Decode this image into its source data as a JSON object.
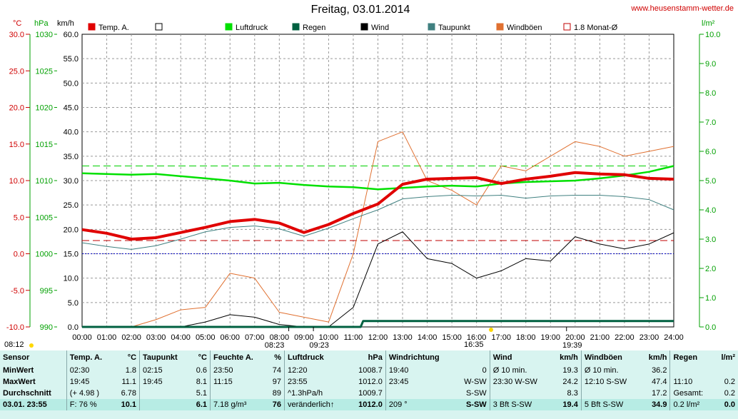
{
  "title": "Freitag, 03.01.2014",
  "site": "www.heusenstamm-wetter.de",
  "units": {
    "temp": "°C",
    "press": "hPa",
    "wind": "km/h",
    "rain": "l/m²"
  },
  "legend": [
    {
      "label": "Temp. A.",
      "color": "#e00000",
      "icon": "filled-square-icon"
    },
    {
      "label": "",
      "color": "#ffffff",
      "icon": "empty-square-icon"
    },
    {
      "label": "Luftdruck",
      "color": "#00e000",
      "icon": "filled-square-icon"
    },
    {
      "label": "Regen",
      "color": "#006040",
      "icon": "filled-square-icon"
    },
    {
      "label": "Wind",
      "color": "#000000",
      "icon": "filled-square-icon"
    },
    {
      "label": "Taupunkt",
      "color": "#408080",
      "icon": "filled-square-icon"
    },
    {
      "label": "Windböen",
      "color": "#e07030",
      "icon": "filled-square-icon"
    },
    {
      "label": "1.8 Monat-Ø",
      "color": "#c00000",
      "icon": "outline-square-icon"
    }
  ],
  "sun": {
    "sunrise": "08:12",
    "sunset": "16:35"
  },
  "chart_data": {
    "type": "line",
    "x_ticks": [
      "00:00",
      "01:00",
      "02:00",
      "03:00",
      "04:00",
      "05:00",
      "06:00",
      "07:00",
      "08:00",
      "09:00",
      "10:00",
      "11:00",
      "12:00",
      "13:00",
      "14:00",
      "15:00",
      "16:00",
      "17:00",
      "18:00",
      "19:00",
      "20:00",
      "21:00",
      "22:00",
      "23:00",
      "24:00"
    ],
    "x_markers": [
      "08:23",
      "09:23",
      "19:39"
    ],
    "axes": {
      "temp": {
        "ticks": [
          "30.0",
          "25.0",
          "20.0",
          "15.0",
          "10.0",
          "5.0",
          "0.0",
          "-5.0",
          "-10.0"
        ],
        "ylim": [
          -10,
          30
        ]
      },
      "press": {
        "ticks": [
          "1030",
          "1025",
          "1020",
          "1015",
          "1010",
          "1005",
          "1000",
          "995",
          "990"
        ],
        "ylim": [
          990,
          1030
        ]
      },
      "wind": {
        "ticks": [
          "60.0",
          "55.0",
          "50.0",
          "45.0",
          "40.0",
          "35.0",
          "30.0",
          "25.0",
          "20.0",
          "15.0",
          "10.0",
          "5.0",
          "0.0"
        ],
        "ylim": [
          0,
          60
        ]
      },
      "rain": {
        "ticks": [
          "10.0",
          "9.0",
          "8.0",
          "7.0",
          "6.0",
          "5.0",
          "4.0",
          "3.0",
          "2.0",
          "1.0",
          "0.0"
        ],
        "ylim": [
          0,
          10
        ]
      }
    },
    "reference_lines": {
      "pressure_avg": 1012.0,
      "temp_month_avg": 1.8,
      "freezing": 0.0
    },
    "series": [
      {
        "name": "Temp. A.",
        "color": "#e00000",
        "x": [
          0,
          1,
          2,
          3,
          4,
          5,
          6,
          7,
          8,
          9,
          10,
          11,
          12,
          13,
          14,
          15,
          16,
          17,
          18,
          19,
          20,
          21,
          22,
          23,
          24
        ],
        "y": [
          3.3,
          2.8,
          2.0,
          2.2,
          2.9,
          3.6,
          4.4,
          4.7,
          4.2,
          2.9,
          4.0,
          5.5,
          6.8,
          9.5,
          10.2,
          10.3,
          10.4,
          9.6,
          10.2,
          10.6,
          11.1,
          10.9,
          10.8,
          10.3,
          10.2
        ]
      },
      {
        "name": "Taupunkt",
        "color": "#408080",
        "x": [
          0,
          1,
          2,
          3,
          4,
          5,
          6,
          7,
          8,
          9,
          10,
          11,
          12,
          13,
          14,
          15,
          16,
          17,
          18,
          19,
          20,
          21,
          22,
          23,
          24
        ],
        "y": [
          1.5,
          1.0,
          0.6,
          1.1,
          2.0,
          3.0,
          3.6,
          3.8,
          3.4,
          2.4,
          3.5,
          4.8,
          6.0,
          7.5,
          7.8,
          8.0,
          7.9,
          8.0,
          7.6,
          7.9,
          8.0,
          8.0,
          7.8,
          7.4,
          6.0
        ]
      },
      {
        "name": "Luftdruck",
        "color": "#00e000",
        "x": [
          0,
          1,
          2,
          3,
          4,
          5,
          6,
          7,
          8,
          9,
          10,
          11,
          12,
          13,
          14,
          15,
          16,
          17,
          18,
          19,
          20,
          21,
          22,
          23,
          24
        ],
        "y": [
          1011.0,
          1010.9,
          1010.8,
          1010.9,
          1010.6,
          1010.3,
          1010.0,
          1009.6,
          1009.7,
          1009.4,
          1009.2,
          1009.1,
          1008.8,
          1009.0,
          1009.2,
          1009.3,
          1009.2,
          1009.6,
          1009.8,
          1009.9,
          1010.0,
          1010.3,
          1010.7,
          1011.2,
          1012.0
        ]
      },
      {
        "name": "Wind",
        "color": "#000000",
        "x": [
          0,
          1,
          2,
          3,
          4,
          5,
          6,
          7,
          8,
          9,
          10,
          11,
          12,
          13,
          14,
          15,
          16,
          17,
          18,
          19,
          20,
          21,
          22,
          23,
          24
        ],
        "y": [
          0,
          0,
          0,
          0,
          0,
          1.0,
          2.5,
          2.0,
          0.5,
          0,
          0,
          4.0,
          17.0,
          19.5,
          14.0,
          13.0,
          10.0,
          11.5,
          14.0,
          13.5,
          18.5,
          17.0,
          16.0,
          17.0,
          19.3
        ]
      },
      {
        "name": "Windböen",
        "color": "#e07030",
        "x": [
          0,
          1,
          2,
          3,
          4,
          5,
          6,
          7,
          8,
          9,
          10,
          11,
          12,
          13,
          14,
          15,
          16,
          17,
          18,
          19,
          20,
          21,
          22,
          23,
          24
        ],
        "y": [
          0,
          0,
          0,
          1.5,
          3.5,
          4.0,
          11.0,
          10.0,
          3.0,
          2.0,
          1.0,
          15.0,
          38.0,
          40.0,
          30.0,
          28.0,
          25.0,
          33.0,
          32.0,
          35.0,
          38.0,
          37.0,
          35.0,
          36.0,
          37.0
        ]
      },
      {
        "name": "Regen",
        "color": "#006040",
        "x": [
          0,
          11.3,
          11.4,
          24
        ],
        "y": [
          0,
          0,
          0.2,
          0.2
        ]
      }
    ]
  },
  "stats": {
    "header": [
      "Sensor",
      "Temp. A.",
      "°C",
      "Taupunkt",
      "°C",
      "Feuchte A.",
      "%",
      "Luftdruck",
      "hPa",
      "Windrichtung",
      "",
      "Wind",
      "km/h",
      "Windböen",
      "km/h",
      "Regen",
      "l/m²"
    ],
    "rows": [
      [
        "MinWert",
        "02:30",
        "1.8",
        "02:15",
        "0.6",
        "23:50",
        "74",
        "12:20",
        "1008.7",
        "19:40",
        "0",
        "Ø 10 min.",
        "19.3",
        "Ø 10 min.",
        "36.2",
        "",
        ""
      ],
      [
        "MaxWert",
        "19:45",
        "11.1",
        "19:45",
        "8.1",
        "11:15",
        "97",
        "23:55",
        "1012.0",
        "23:45",
        "W-SW",
        "23:30  W-SW",
        "24.2",
        "12:10  S-SW",
        "47.4",
        "11:10",
        "0.2"
      ],
      [
        "Durchschnitt",
        "(+ 4.98 )",
        "6.78",
        "",
        "5.1",
        "",
        "89",
        "^1.3hPa/h",
        "1009.7",
        "",
        "S-SW",
        "",
        "8.3",
        "",
        "17.2",
        "Gesamt:",
        "0.2"
      ],
      [
        "03.01. 23:55",
        "F: 76 %",
        "10.1",
        "",
        "6.1",
        "7.18 g/m³",
        "76",
        "veränderlich↑",
        "1012.0",
        "209 °",
        "S-SW",
        "3 Bft S-SW",
        "19.4",
        "5 Bft S-SW",
        "34.9",
        "0.2 l/m²",
        "0.0"
      ]
    ]
  }
}
